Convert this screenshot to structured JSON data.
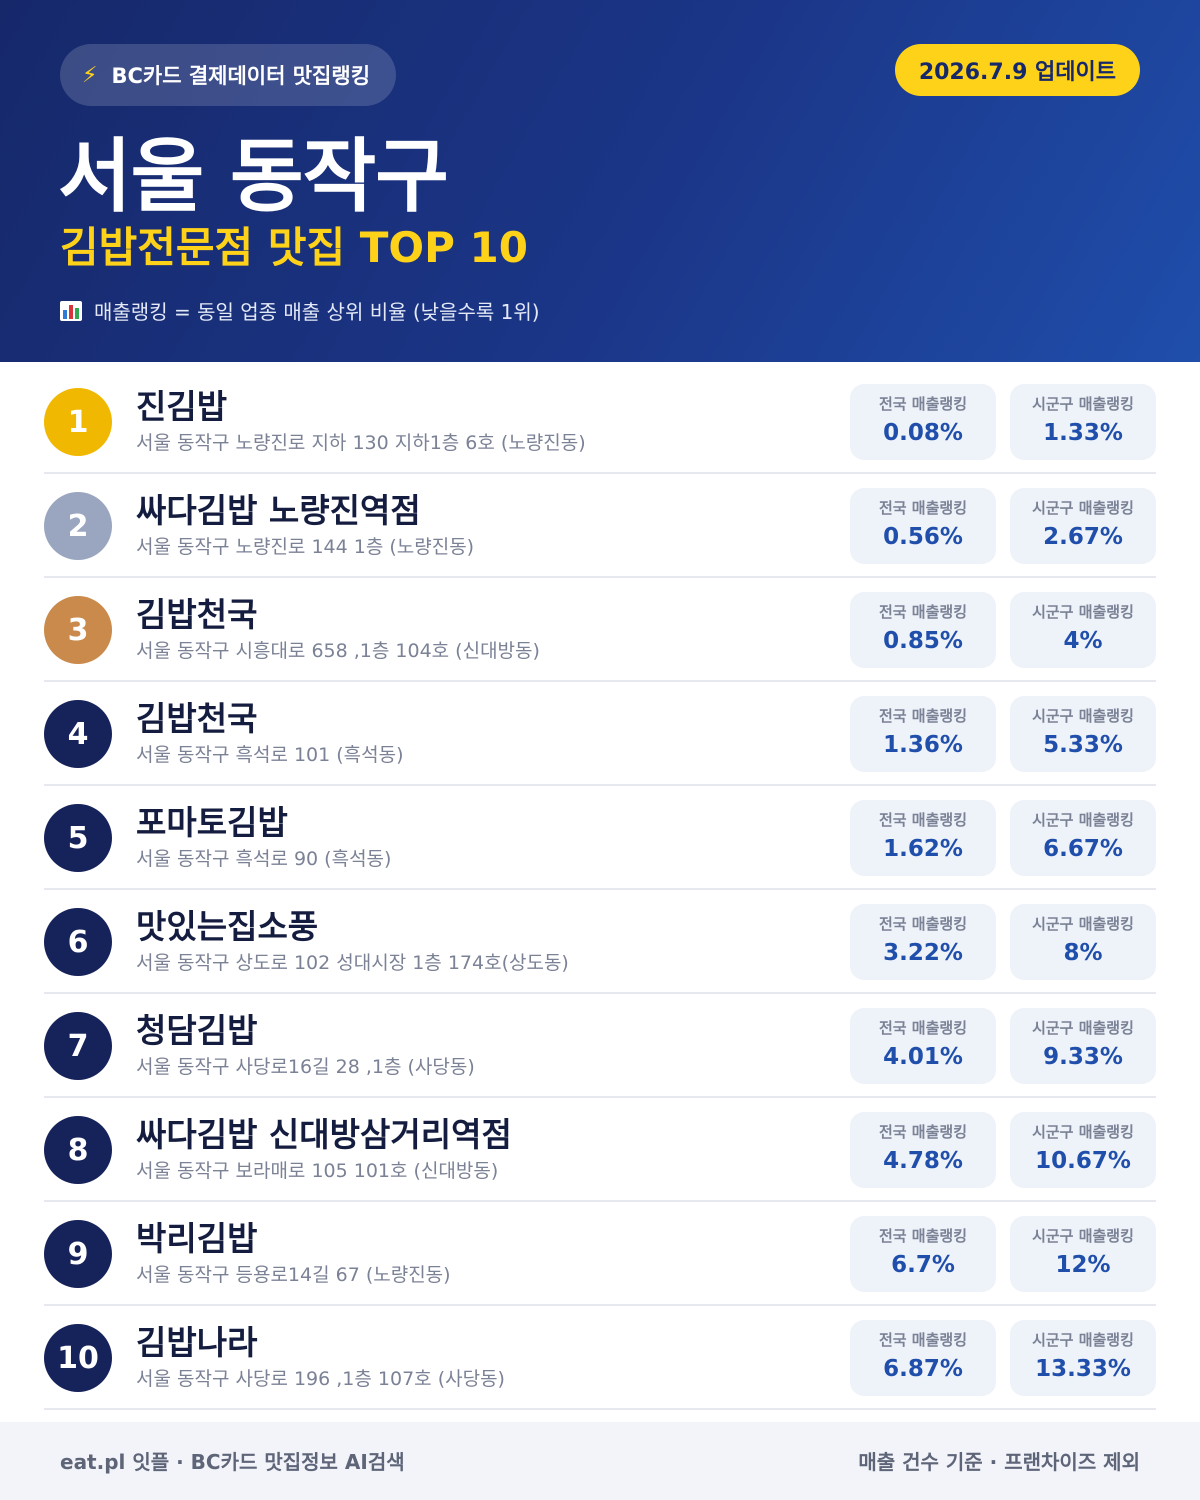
{
  "header": {
    "source_label": "BC카드 결제데이터 맛집랭킹",
    "source_icon": "lightning-icon",
    "update_label": "2026.7.9 업데이트",
    "region": "서울 동작구",
    "category": "김밥전문점 맛집 TOP 10",
    "legend_icon": "bar-chart-icon",
    "legend_text": "매출랭킹 = 동일 업종 매출 상위 비율 (낮을수록 1위)"
  },
  "stat_labels": {
    "national": "전국 매출랭킹",
    "local": "시군구 매출랭킹"
  },
  "colors": {
    "gold": "#f0b800",
    "silver": "#9aa6bf",
    "bronze": "#c98a4b",
    "navy": "#16225a",
    "accent_yellow": "#ffd21a",
    "value_blue": "#1f4eab"
  },
  "restaurants": [
    {
      "rank": "1",
      "name": "진김밥",
      "address": "서울 동작구 노량진로 지하 130 지하1층 6호 (노량진동)",
      "national": "0.08%",
      "local": "1.33%"
    },
    {
      "rank": "2",
      "name": "싸다김밥 노량진역점",
      "address": "서울 동작구 노량진로 144 1층 (노량진동)",
      "national": "0.56%",
      "local": "2.67%"
    },
    {
      "rank": "3",
      "name": "김밥천국",
      "address": "서울 동작구 시흥대로 658 ,1층 104호 (신대방동)",
      "national": "0.85%",
      "local": "4%"
    },
    {
      "rank": "4",
      "name": "김밥천국",
      "address": "서울 동작구 흑석로 101 (흑석동)",
      "national": "1.36%",
      "local": "5.33%"
    },
    {
      "rank": "5",
      "name": "포마토김밥",
      "address": "서울 동작구 흑석로 90 (흑석동)",
      "national": "1.62%",
      "local": "6.67%"
    },
    {
      "rank": "6",
      "name": "맛있는집소풍",
      "address": "서울 동작구 상도로 102 성대시장 1층 174호(상도동)",
      "national": "3.22%",
      "local": "8%"
    },
    {
      "rank": "7",
      "name": "청담김밥",
      "address": "서울 동작구 사당로16길 28 ,1층 (사당동)",
      "national": "4.01%",
      "local": "9.33%"
    },
    {
      "rank": "8",
      "name": "싸다김밥 신대방삼거리역점",
      "address": "서울 동작구 보라매로 105 101호 (신대방동)",
      "national": "4.78%",
      "local": "10.67%"
    },
    {
      "rank": "9",
      "name": "박리김밥",
      "address": "서울 동작구 등용로14길 67 (노량진동)",
      "national": "6.7%",
      "local": "12%"
    },
    {
      "rank": "10",
      "name": "김밥나라",
      "address": "서울 동작구 사당로 196 ,1층 107호 (사당동)",
      "national": "6.87%",
      "local": "13.33%"
    }
  ],
  "footer": {
    "left": "eat.pl 잇플 · BC카드 맛집정보 AI검색",
    "right": "매출 건수 기준 · 프랜차이즈 제외"
  }
}
